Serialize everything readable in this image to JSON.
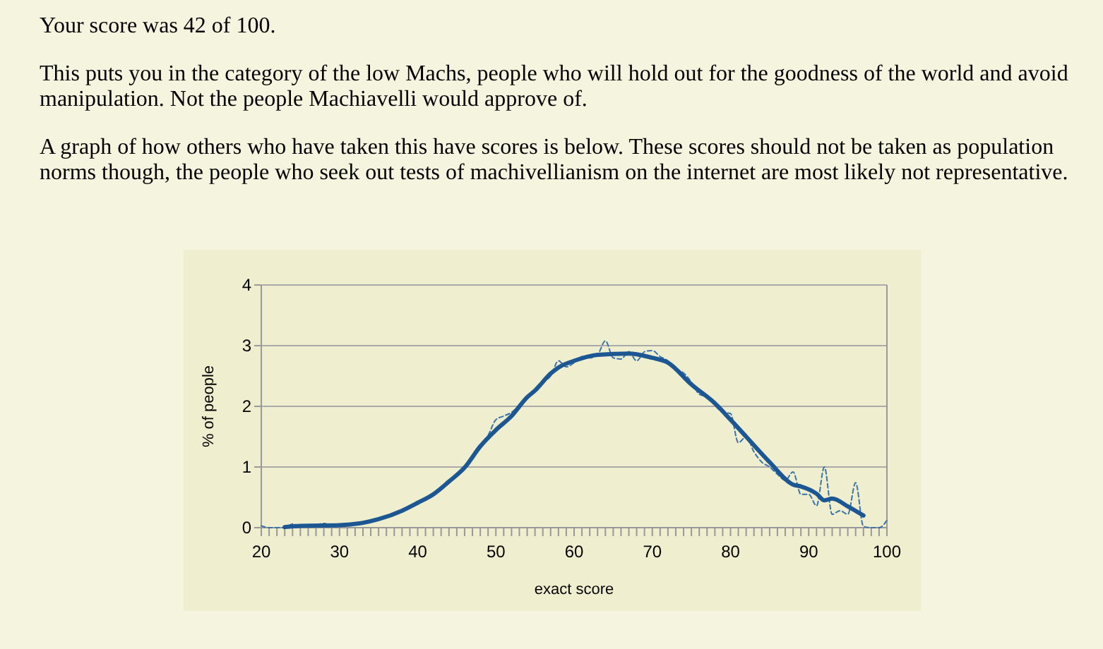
{
  "chart_data": {
    "type": "line",
    "title": "Your score was 42 of 100.",
    "annotations": [
      "This puts you in the category of the low Machs, people who will hold out for the goodness of the world and avoid manipulation. Not the people Machiavelli would approve of.",
      "A graph of how others who have taken this have scores is below. These scores should not be taken as population norms though, the people who seek out tests of machivellianism on the internet are most likely not representative."
    ],
    "xlabel": "exact score",
    "ylabel": "% of people",
    "xlim": [
      20,
      100
    ],
    "ylim": [
      0,
      4
    ],
    "xticks": [
      20,
      {
        "value": 21,
        "label": null
      },
      {
        "value": 22,
        "label": null
      },
      {
        "value": 23,
        "label": null
      },
      {
        "value": 24,
        "label": null
      },
      {
        "value": 25,
        "label": null
      },
      {
        "value": 26,
        "label": null
      },
      {
        "value": 27,
        "label": null
      },
      {
        "value": 28,
        "label": null
      },
      {
        "value": 29,
        "label": null
      },
      30,
      {
        "value": 31,
        "label": null
      },
      {
        "value": 32,
        "label": null
      },
      {
        "value": 33,
        "label": null
      },
      {
        "value": 34,
        "label": null
      },
      {
        "value": 35,
        "label": null
      },
      {
        "value": 36,
        "label": null
      },
      {
        "value": 37,
        "label": null
      },
      {
        "value": 38,
        "label": null
      },
      {
        "value": 39,
        "label": null
      },
      40,
      {
        "value": 41,
        "label": null
      },
      {
        "value": 42,
        "label": null
      },
      {
        "value": 43,
        "label": null
      },
      {
        "value": 44,
        "label": null
      },
      {
        "value": 45,
        "label": null
      },
      {
        "value": 46,
        "label": null
      },
      {
        "value": 47,
        "label": null
      },
      {
        "value": 48,
        "label": null
      },
      {
        "value": 49,
        "label": null
      },
      50,
      {
        "value": 51,
        "label": null
      },
      {
        "value": 52,
        "label": null
      },
      {
        "value": 53,
        "label": null
      },
      {
        "value": 54,
        "label": null
      },
      {
        "value": 55,
        "label": null
      },
      {
        "value": 56,
        "label": null
      },
      {
        "value": 57,
        "label": null
      },
      {
        "value": 58,
        "label": null
      },
      {
        "value": 59,
        "label": null
      },
      60,
      {
        "value": 61,
        "label": null
      },
      {
        "value": 62,
        "label": null
      },
      {
        "value": 63,
        "label": null
      },
      {
        "value": 64,
        "label": null
      },
      {
        "value": 65,
        "label": null
      },
      {
        "value": 66,
        "label": null
      },
      {
        "value": 67,
        "label": null
      },
      {
        "value": 68,
        "label": null
      },
      {
        "value": 69,
        "label": null
      },
      70,
      {
        "value": 71,
        "label": null
      },
      {
        "value": 72,
        "label": null
      },
      {
        "value": 73,
        "label": null
      },
      {
        "value": 74,
        "label": null
      },
      {
        "value": 75,
        "label": null
      },
      {
        "value": 76,
        "label": null
      },
      {
        "value": 77,
        "label": null
      },
      {
        "value": 78,
        "label": null
      },
      {
        "value": 79,
        "label": null
      },
      80,
      {
        "value": 81,
        "label": null
      },
      {
        "value": 82,
        "label": null
      },
      {
        "value": 83,
        "label": null
      },
      {
        "value": 84,
        "label": null
      },
      {
        "value": 85,
        "label": null
      },
      {
        "value": 86,
        "label": null
      },
      {
        "value": 87,
        "label": null
      },
      {
        "value": 88,
        "label": null
      },
      {
        "value": 89,
        "label": null
      },
      90,
      {
        "value": 91,
        "label": null
      },
      {
        "value": 92,
        "label": null
      },
      {
        "value": 93,
        "label": null
      },
      {
        "value": 94,
        "label": null
      },
      {
        "value": 95,
        "label": null
      },
      {
        "value": 96,
        "label": null
      },
      {
        "value": 97,
        "label": null
      },
      {
        "value": 98,
        "label": null
      },
      {
        "value": 99,
        "label": null
      },
      100
    ],
    "yticks": [
      0,
      1,
      2,
      3,
      4
    ],
    "grid": "y",
    "marker": "none",
    "series": [
      {
        "color": "#3a73a8",
        "line_style": "dashed",
        "x": [
          20,
          21,
          22,
          23,
          24,
          25,
          26,
          27,
          28,
          29,
          30,
          31,
          32,
          33,
          34,
          35,
          36,
          37,
          38,
          39,
          40,
          41,
          42,
          43,
          44,
          45,
          46,
          47,
          48,
          49,
          50,
          51,
          52,
          53,
          54,
          55,
          56,
          57,
          58,
          59,
          60,
          61,
          62,
          63,
          64,
          65,
          66,
          67,
          68,
          69,
          70,
          71,
          72,
          73,
          74,
          75,
          76,
          77,
          78,
          79,
          80,
          81,
          82,
          83,
          84,
          85,
          86,
          87,
          88,
          89,
          90,
          91,
          92,
          93,
          94,
          95,
          96,
          97,
          98,
          99,
          100
        ],
        "values": [
          0.03,
          0,
          0,
          0,
          0.06,
          0.03,
          0.04,
          0.05,
          0.07,
          0.04,
          0.05,
          0.06,
          0.07,
          0.08,
          0.11,
          0.14,
          0.18,
          0.23,
          0.28,
          0.34,
          0.41,
          0.48,
          0.55,
          0.65,
          0.76,
          0.87,
          0.98,
          1.18,
          1.36,
          1.52,
          1.78,
          1.84,
          1.9,
          2.02,
          2.15,
          2.26,
          2.4,
          2.5,
          2.75,
          2.65,
          2.72,
          2.82,
          2.8,
          2.85,
          3.08,
          2.8,
          2.78,
          2.9,
          2.75,
          2.9,
          2.92,
          2.82,
          2.75,
          2.62,
          2.55,
          2.4,
          2.2,
          2.15,
          2.02,
          1.9,
          1.88,
          1.4,
          1.5,
          1.25,
          1.08,
          1.0,
          0.88,
          0.78,
          0.92,
          0.55,
          0.55,
          0.36,
          1.0,
          0.22,
          0.28,
          0.22,
          0.74,
          0.02,
          0,
          0,
          0.12
        ]
      },
      {
        "color": "#1d5793",
        "line_style": "solid",
        "x": [
          23,
          25,
          30,
          33,
          35,
          38,
          40,
          42,
          44,
          46,
          48,
          50,
          52,
          54,
          55,
          57,
          58,
          60,
          63,
          67,
          70,
          72,
          75,
          78,
          80,
          82,
          85,
          88,
          89,
          91,
          92,
          93,
          95,
          97
        ],
        "values": [
          0.01,
          0.03,
          0.04,
          0.08,
          0.14,
          0.28,
          0.41,
          0.55,
          0.76,
          0.99,
          1.34,
          1.61,
          1.84,
          2.15,
          2.26,
          2.54,
          2.64,
          2.75,
          2.85,
          2.87,
          2.8,
          2.72,
          2.36,
          2.05,
          1.78,
          1.5,
          1.08,
          0.71,
          0.68,
          0.56,
          0.45,
          0.48,
          0.35,
          0.2
        ]
      }
    ]
  }
}
